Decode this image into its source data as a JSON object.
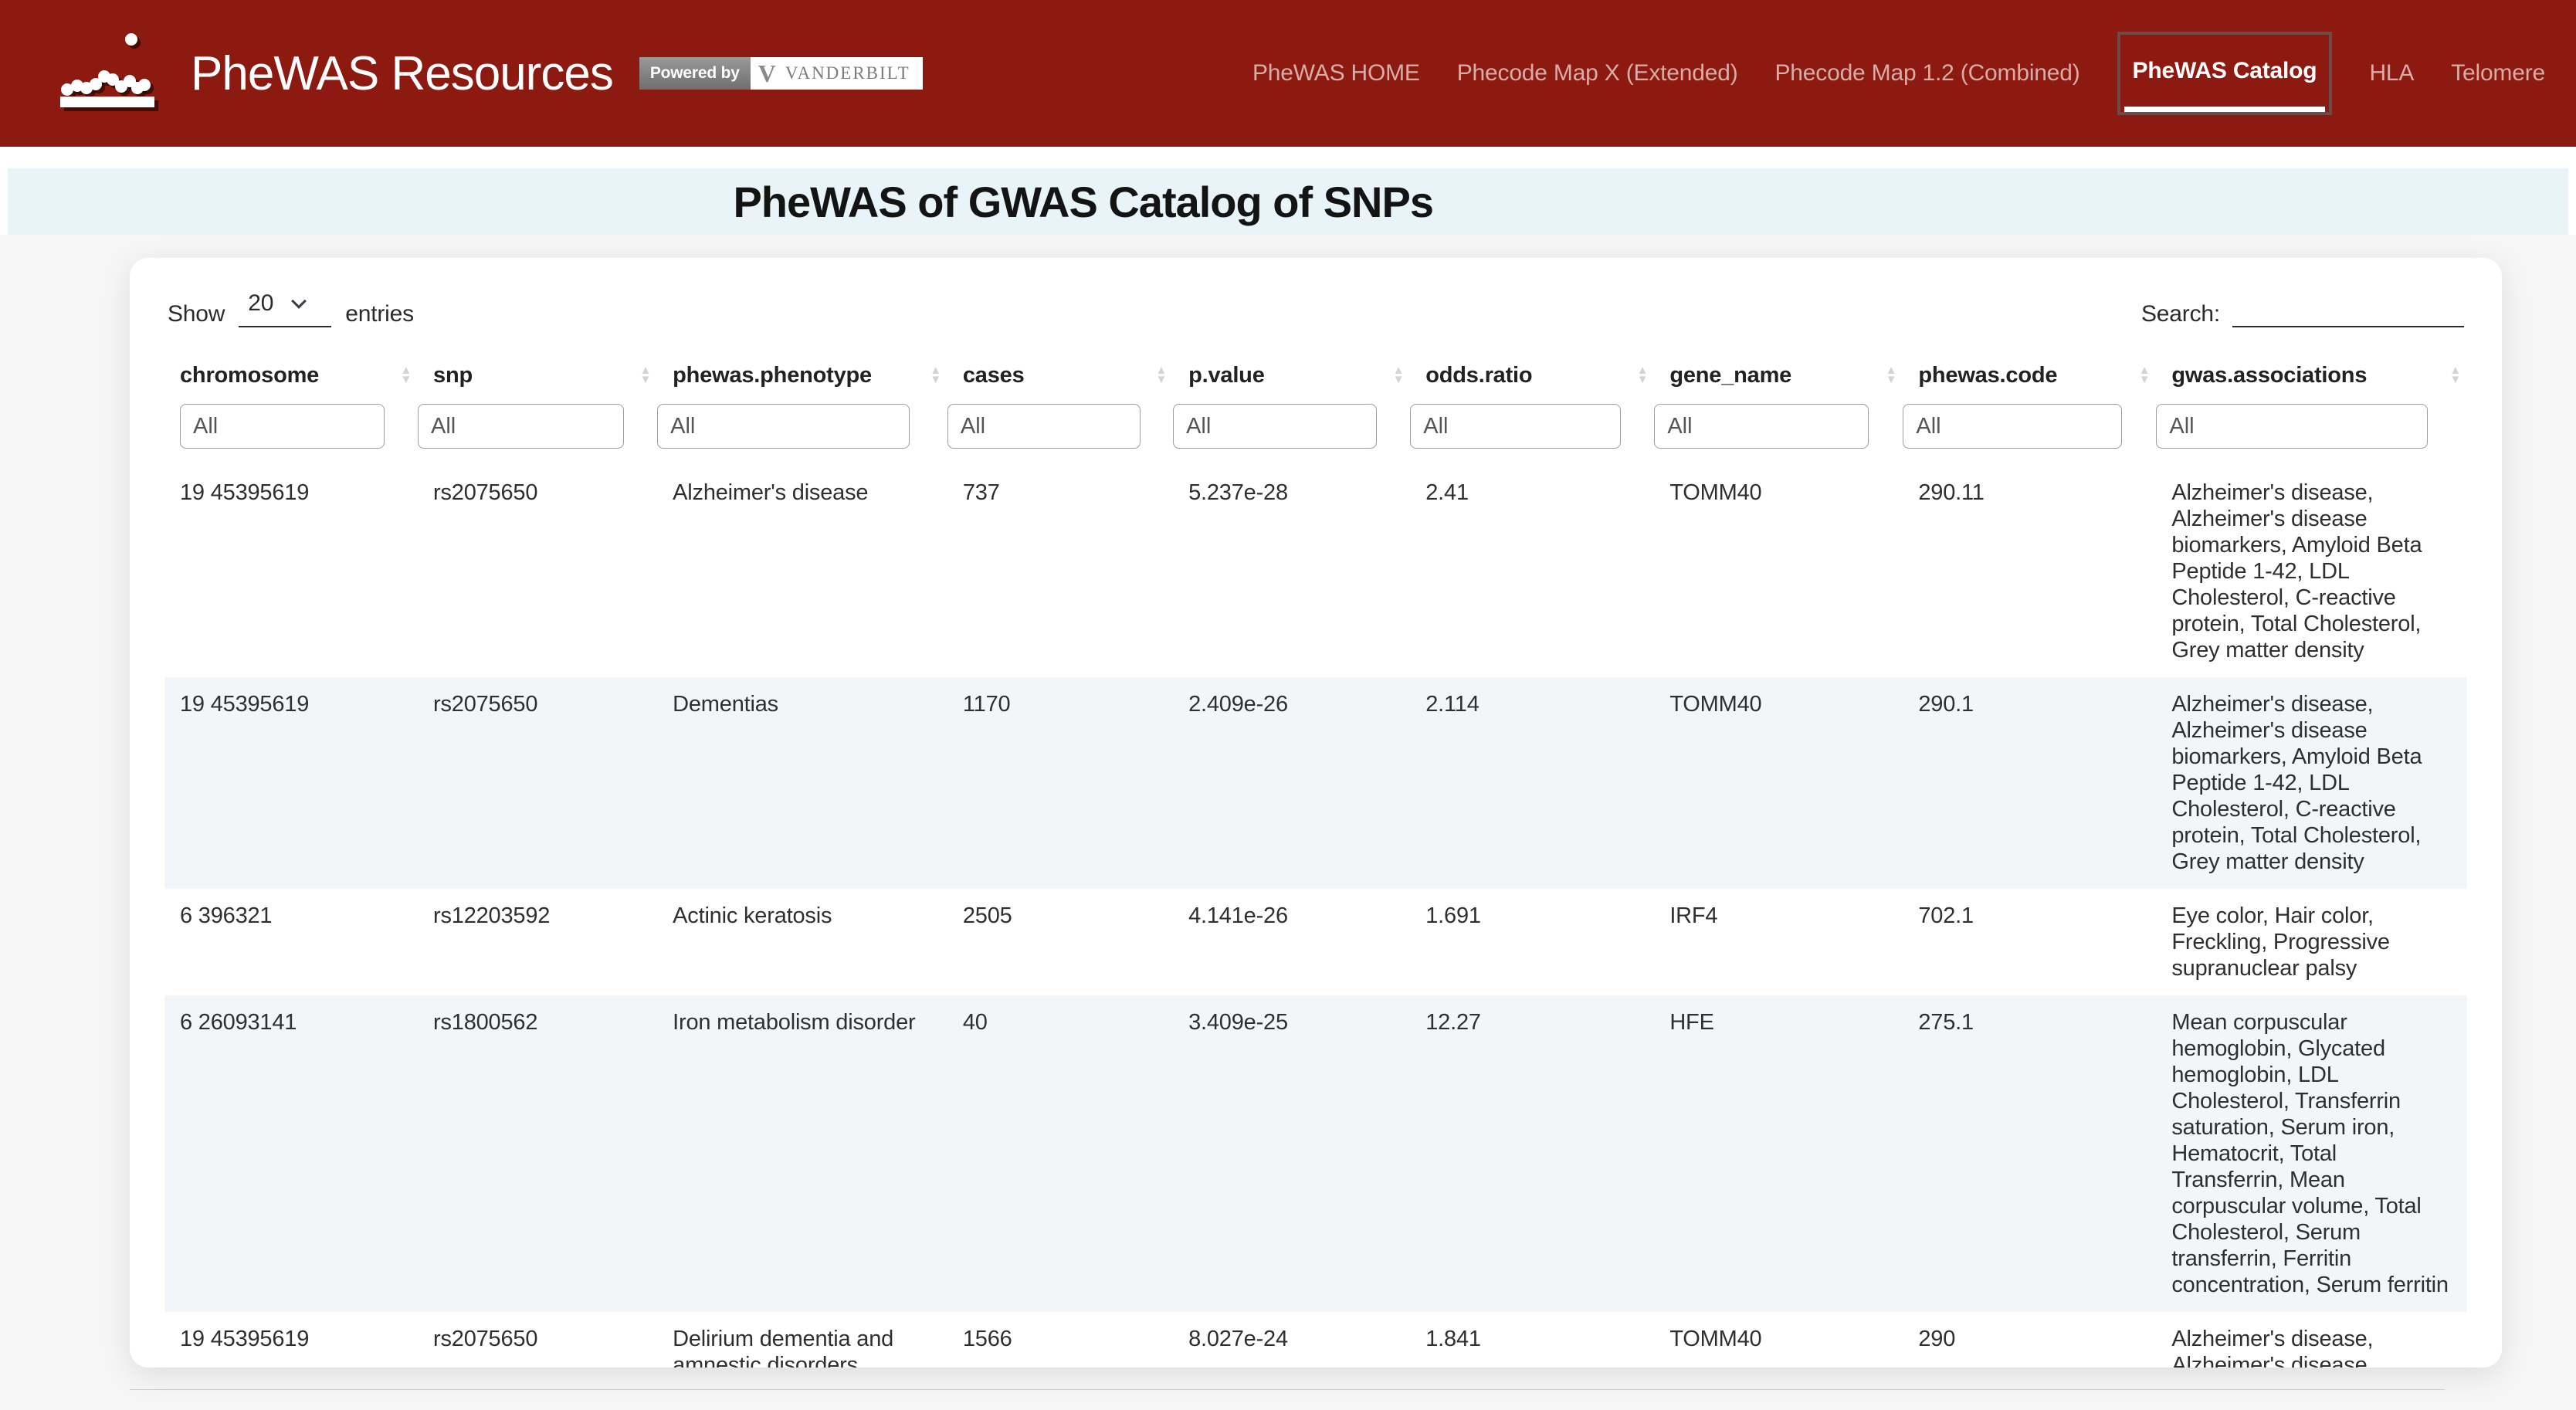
{
  "theme": {
    "header_bg": "#8C1A11",
    "nav_inactive": "#D9ACA8",
    "nav_active": "#FFFFFF",
    "nav_active_border": "#6F4B48",
    "title_band_bg": "#E9F4F8",
    "row_stripe_bg": "#F2F6F9",
    "card_bg": "#FFFFFF",
    "sort_icon_color": "#D4D4D4"
  },
  "header": {
    "brand": "PheWAS Resources",
    "badge": {
      "powered_by": "Powered by",
      "v_mark": "V",
      "vanderbilt": "VANDERBILT"
    },
    "nav": [
      {
        "label": "PheWAS HOME",
        "active": false
      },
      {
        "label": "Phecode Map X (Extended)",
        "active": false
      },
      {
        "label": "Phecode Map 1.2 (Combined)",
        "active": false
      },
      {
        "label": "PheWAS Catalog",
        "active": true
      },
      {
        "label": "HLA",
        "active": false
      },
      {
        "label": "Telomere",
        "active": false
      }
    ]
  },
  "page": {
    "title": "PheWAS of GWAS Catalog of SNPs"
  },
  "controls": {
    "show_label": "Show",
    "entries_value": "20",
    "entries_label": "entries",
    "search_label": "Search:",
    "search_value": ""
  },
  "table": {
    "columns": [
      "chromosome",
      "snp",
      "phewas.phenotype",
      "cases",
      "p.value",
      "odds.ratio",
      "gene_name",
      "phewas.code",
      "gwas.associations"
    ],
    "filter_placeholder": "All",
    "rows": [
      [
        "19 45395619",
        "rs2075650",
        "Alzheimer's disease",
        "737",
        "5.237e-28",
        "2.41",
        "TOMM40",
        "290.11",
        "Alzheimer's disease, Alzheimer's disease biomarkers, Amyloid Beta Peptide 1-42, LDL Cholesterol, C-reactive protein, Total Cholesterol, Grey matter density"
      ],
      [
        "19 45395619",
        "rs2075650",
        "Dementias",
        "1170",
        "2.409e-26",
        "2.114",
        "TOMM40",
        "290.1",
        "Alzheimer's disease, Alzheimer's disease biomarkers, Amyloid Beta Peptide 1-42, LDL Cholesterol, C-reactive protein, Total Cholesterol, Grey matter density"
      ],
      [
        "6 396321",
        "rs12203592",
        "Actinic keratosis",
        "2505",
        "4.141e-26",
        "1.691",
        "IRF4",
        "702.1",
        "Eye color, Hair color, Freckling, Progressive supranuclear palsy"
      ],
      [
        "6 26093141",
        "rs1800562",
        "Iron metabolism disorder",
        "40",
        "3.409e-25",
        "12.27",
        "HFE",
        "275.1",
        "Mean corpuscular hemoglobin, Glycated hemoglobin, LDL Cholesterol, Transferrin saturation, Serum iron, Hematocrit, Total Transferrin, Mean corpuscular volume, Total Cholesterol, Serum transferrin, Ferritin concentration, Serum ferritin"
      ],
      [
        "19 45395619",
        "rs2075650",
        "Delirium dementia and amnestic disorders",
        "1566",
        "8.027e-24",
        "1.841",
        "TOMM40",
        "290",
        "Alzheimer's disease, Alzheimer's disease biomarkers, Amyloid Beta"
      ]
    ]
  }
}
